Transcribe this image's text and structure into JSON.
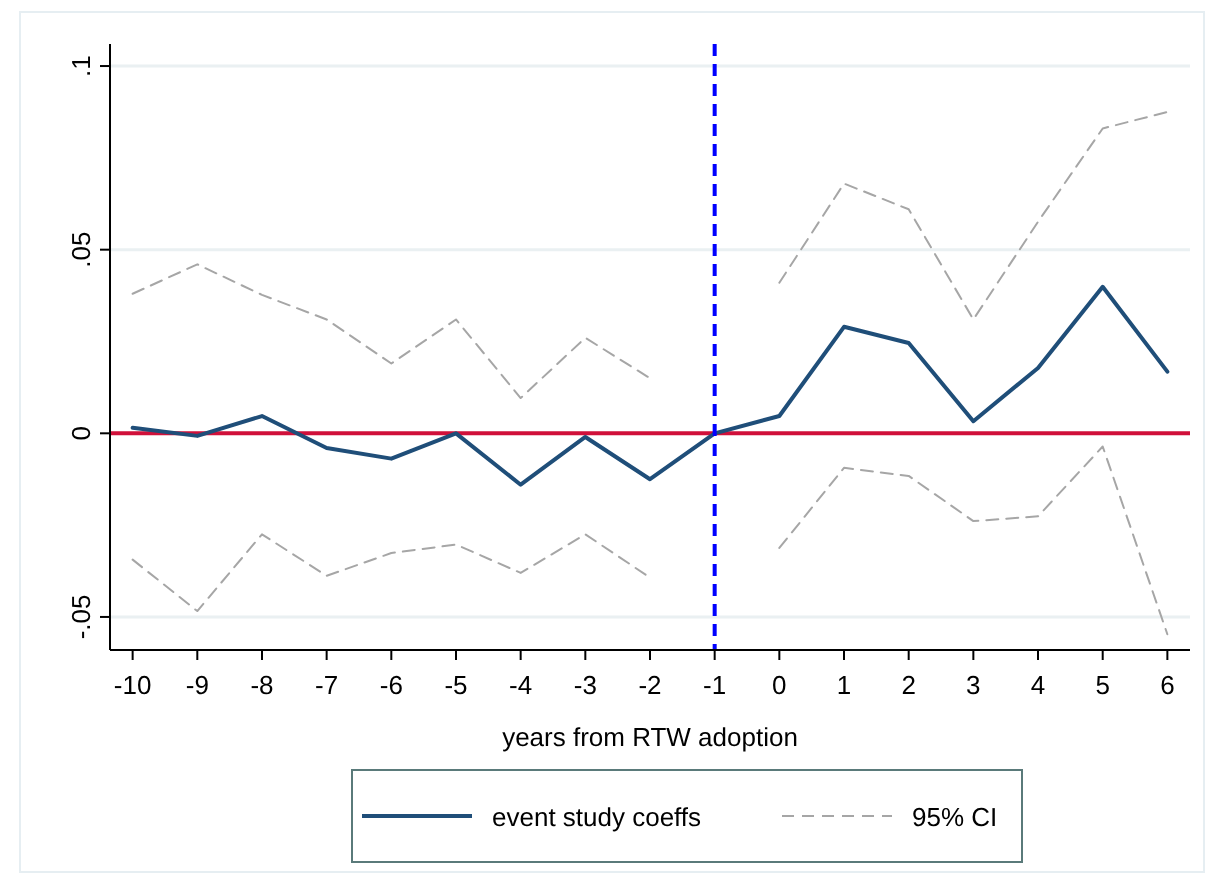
{
  "chart_data": {
    "type": "line",
    "xlabel": "years from RTW adoption",
    "x": [
      -10,
      -9,
      -8,
      -7,
      -6,
      -5,
      -4,
      -3,
      -2,
      -1,
      0,
      1,
      2,
      3,
      4,
      5,
      6
    ],
    "series": [
      {
        "name": "event study coeffs",
        "color": "#1f4e79",
        "line_style": "solid",
        "values": [
          0.0015,
          -0.0007,
          0.0047,
          -0.004,
          -0.0069,
          0,
          -0.014,
          -0.001,
          -0.0125,
          0,
          0.0047,
          0.029,
          0.0246,
          0.0033,
          0.0178,
          0.0399,
          0.0168
        ]
      },
      {
        "name": "95% CI",
        "color": "#a6a6a6",
        "line_style": "dashed",
        "values": [
          0.038,
          0.046,
          0.0377,
          0.031,
          0.019,
          0.031,
          0.0096,
          0.026,
          0.015,
          null,
          0.041,
          0.068,
          0.061,
          0.031,
          0.0576,
          0.083,
          0.0875
        ]
      },
      {
        "color": "#a6a6a6",
        "line_style": "dashed",
        "values": [
          -0.0344,
          -0.0484,
          -0.0275,
          -0.0388,
          -0.0326,
          -0.0303,
          -0.038,
          -0.0275,
          -0.0393,
          null,
          -0.0312,
          -0.0094,
          -0.0116,
          -0.0239,
          -0.0226,
          -0.0036,
          -0.0547
        ]
      }
    ],
    "xlim": [
      -10.35,
      6.35
    ],
    "xticks": [
      -10,
      -9,
      -8,
      -7,
      -6,
      -5,
      -4,
      -3,
      -2,
      -1,
      0,
      1,
      2,
      3,
      4,
      5,
      6
    ],
    "ylim": [
      -0.059,
      0.106
    ],
    "yticks": [
      {
        "value": -0.05,
        "label": "-.05"
      },
      {
        "value": 0,
        "label": "0"
      },
      {
        "value": 0.05,
        "label": ".05"
      },
      {
        "value": 0.1,
        "label": ".1"
      }
    ],
    "ref_lines": [
      {
        "axis": "y",
        "value": 0,
        "color": "#d0103a",
        "line_style": "solid"
      },
      {
        "axis": "x",
        "value": -1,
        "color": "#0000ff",
        "line_style": "dashed"
      }
    ],
    "grid": "y",
    "legend": "bottom",
    "marker": "none"
  }
}
